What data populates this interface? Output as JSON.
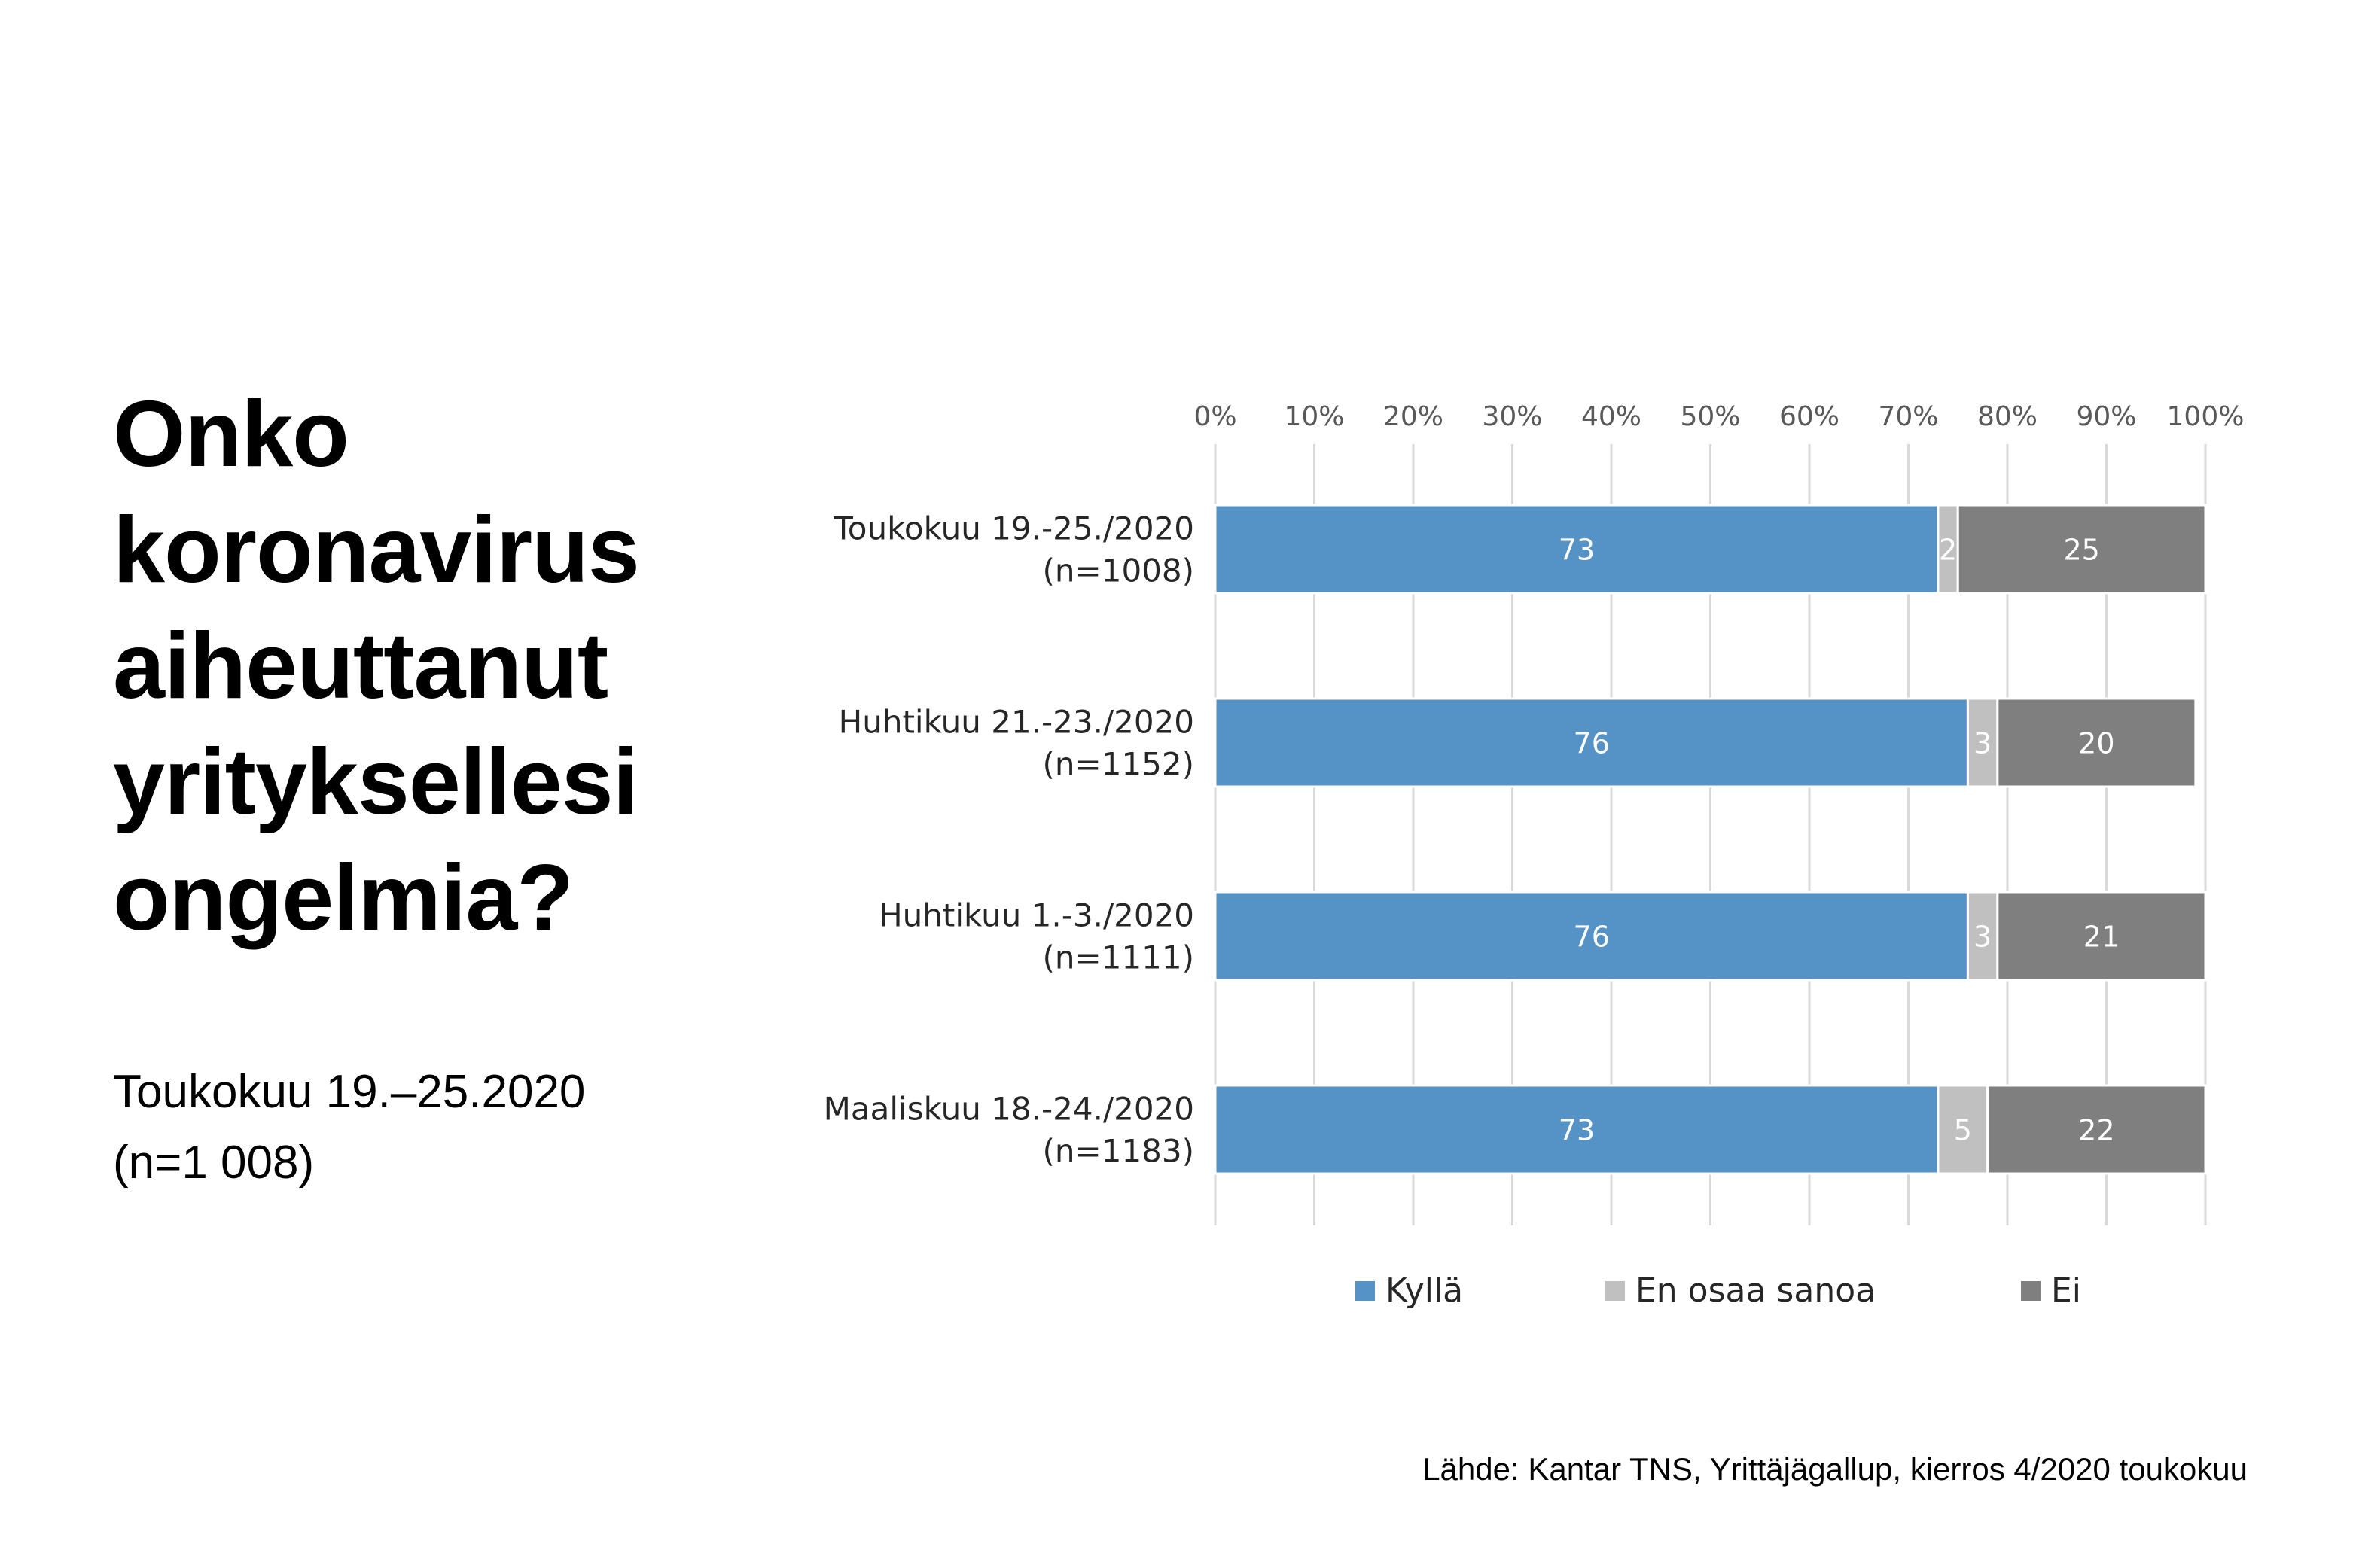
{
  "header": {
    "title_lines": [
      "Onko",
      "koronavirus",
      "aiheuttanut",
      "yrityksellesi",
      "ongelmia?"
    ],
    "subtitle_lines": [
      "Toukokuu 19.–25.2020",
      "(n=1 008)"
    ]
  },
  "footer": {
    "source": "Lähde: Kantar TNS, Yrittäjägallup, kierros 4/2020 toukokuu"
  },
  "chart_data": {
    "type": "bar",
    "orientation": "horizontal",
    "stacked": true,
    "percent_stacked": true,
    "xlim": [
      0,
      100
    ],
    "x_ticks": [
      "0%",
      "10%",
      "20%",
      "30%",
      "40%",
      "50%",
      "60%",
      "70%",
      "80%",
      "90%",
      "100%"
    ],
    "x_axis_position": "top",
    "grid": true,
    "legend_position": "bottom",
    "categories": [
      [
        "Toukokuu 19.-25./2020",
        "(n=1008)"
      ],
      [
        "Huhtikuu 21.-23./2020",
        "(n=1152)"
      ],
      [
        "Huhtikuu 1.-3./2020",
        "(n=1111)"
      ],
      [
        "Maaliskuu 18.-24./2020",
        "(n=1183)"
      ]
    ],
    "series": [
      {
        "name": "Kyllä",
        "color": "#5592c6",
        "label_color": "#ffffff",
        "values": [
          73,
          76,
          76,
          73
        ]
      },
      {
        "name": "En osaa sanoa",
        "color": "#c0c0c0",
        "label_color": "#ffffff",
        "values": [
          2,
          3,
          3,
          5
        ]
      },
      {
        "name": "Ei",
        "color": "#7f7f7f",
        "label_color": "#ffffff",
        "values": [
          25,
          20,
          21,
          22
        ]
      }
    ]
  }
}
